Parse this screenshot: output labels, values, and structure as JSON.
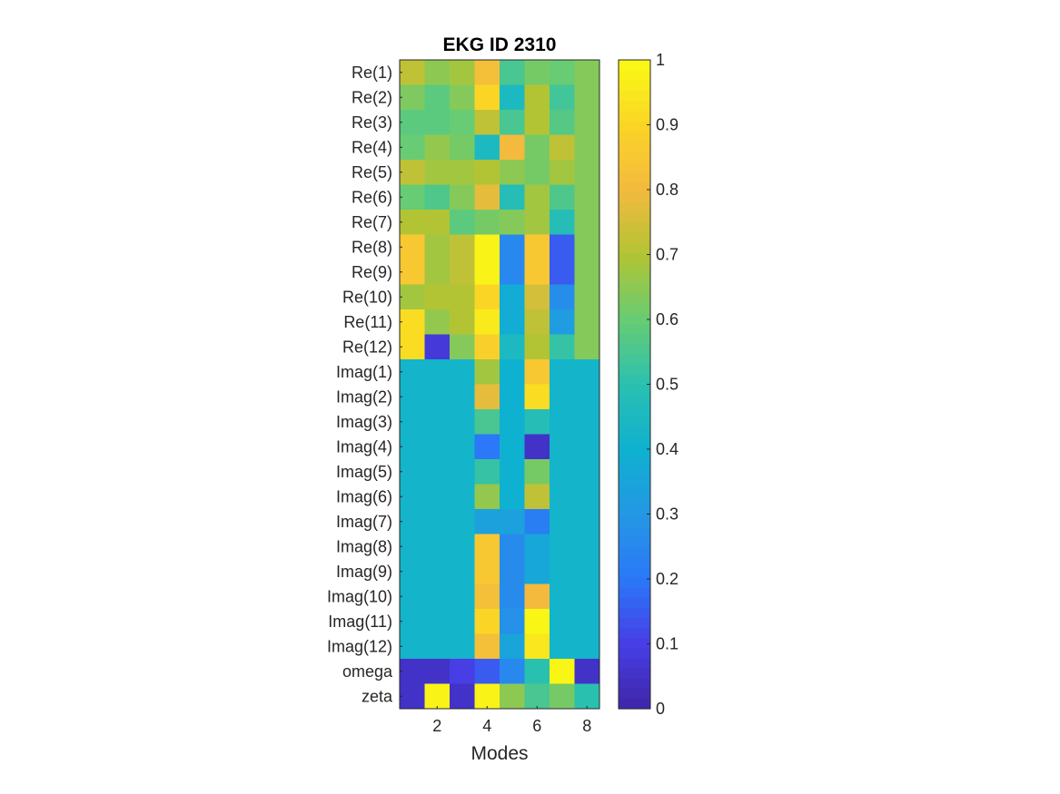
{
  "chart_data": {
    "type": "heatmap",
    "title": "EKG ID 2310",
    "xlabel": "Modes",
    "ylabel": "",
    "x_range": [
      0.5,
      8.5
    ],
    "x_ticks": [
      2,
      4,
      6,
      8
    ],
    "columns": [
      1,
      2,
      3,
      4,
      5,
      6,
      7,
      8
    ],
    "rows": [
      "Re(1)",
      "Re(2)",
      "Re(3)",
      "Re(4)",
      "Re(5)",
      "Re(6)",
      "Re(7)",
      "Re(8)",
      "Re(9)",
      "Re(10)",
      "Re(11)",
      "Re(12)",
      "Imag(1)",
      "Imag(2)",
      "Imag(3)",
      "Imag(4)",
      "Imag(5)",
      "Imag(6)",
      "Imag(7)",
      "Imag(8)",
      "Imag(9)",
      "Imag(10)",
      "Imag(11)",
      "Imag(12)",
      "omega",
      "zeta"
    ],
    "values": [
      [
        0.72,
        0.65,
        0.68,
        0.82,
        0.55,
        0.62,
        0.6,
        0.64
      ],
      [
        0.63,
        0.58,
        0.64,
        0.9,
        0.45,
        0.7,
        0.54,
        0.64
      ],
      [
        0.58,
        0.58,
        0.6,
        0.72,
        0.55,
        0.7,
        0.57,
        0.64
      ],
      [
        0.6,
        0.66,
        0.62,
        0.45,
        0.8,
        0.62,
        0.72,
        0.64
      ],
      [
        0.72,
        0.68,
        0.68,
        0.7,
        0.65,
        0.62,
        0.68,
        0.64
      ],
      [
        0.6,
        0.56,
        0.64,
        0.78,
        0.48,
        0.68,
        0.56,
        0.64
      ],
      [
        0.7,
        0.7,
        0.58,
        0.62,
        0.64,
        0.68,
        0.48,
        0.64
      ],
      [
        0.85,
        0.68,
        0.72,
        0.98,
        0.25,
        0.85,
        0.15,
        0.64
      ],
      [
        0.85,
        0.68,
        0.72,
        0.98,
        0.25,
        0.85,
        0.15,
        0.64
      ],
      [
        0.68,
        0.7,
        0.7,
        0.9,
        0.38,
        0.75,
        0.27,
        0.64
      ],
      [
        0.92,
        0.66,
        0.7,
        0.96,
        0.38,
        0.72,
        0.32,
        0.64
      ],
      [
        0.92,
        0.08,
        0.64,
        0.88,
        0.45,
        0.7,
        0.52,
        0.64
      ],
      [
        0.42,
        0.42,
        0.42,
        0.68,
        0.4,
        0.85,
        0.42,
        0.42
      ],
      [
        0.42,
        0.42,
        0.42,
        0.78,
        0.4,
        0.92,
        0.42,
        0.42
      ],
      [
        0.42,
        0.42,
        0.42,
        0.55,
        0.4,
        0.48,
        0.42,
        0.42
      ],
      [
        0.42,
        0.42,
        0.42,
        0.2,
        0.4,
        0.05,
        0.42,
        0.42
      ],
      [
        0.42,
        0.42,
        0.42,
        0.52,
        0.4,
        0.62,
        0.42,
        0.42
      ],
      [
        0.42,
        0.42,
        0.42,
        0.66,
        0.4,
        0.72,
        0.42,
        0.42
      ],
      [
        0.42,
        0.42,
        0.42,
        0.34,
        0.34,
        0.22,
        0.42,
        0.42
      ],
      [
        0.42,
        0.42,
        0.42,
        0.85,
        0.26,
        0.36,
        0.42,
        0.42
      ],
      [
        0.42,
        0.42,
        0.42,
        0.85,
        0.26,
        0.36,
        0.42,
        0.42
      ],
      [
        0.42,
        0.42,
        0.42,
        0.82,
        0.26,
        0.8,
        0.42,
        0.42
      ],
      [
        0.42,
        0.42,
        0.42,
        0.9,
        0.28,
        0.99,
        0.42,
        0.42
      ],
      [
        0.42,
        0.42,
        0.42,
        0.82,
        0.35,
        0.95,
        0.42,
        0.42
      ],
      [
        0.05,
        0.05,
        0.1,
        0.15,
        0.25,
        0.5,
        0.99,
        0.05
      ],
      [
        0.05,
        0.98,
        0.05,
        0.98,
        0.65,
        0.55,
        0.62,
        0.5
      ]
    ],
    "colormap": "parula",
    "colorbar": {
      "range": [
        0,
        1
      ],
      "ticks": [
        "0",
        "0.1",
        "0.2",
        "0.3",
        "0.4",
        "0.5",
        "0.6",
        "0.7",
        "0.8",
        "0.9",
        "1"
      ]
    },
    "grid": false
  }
}
